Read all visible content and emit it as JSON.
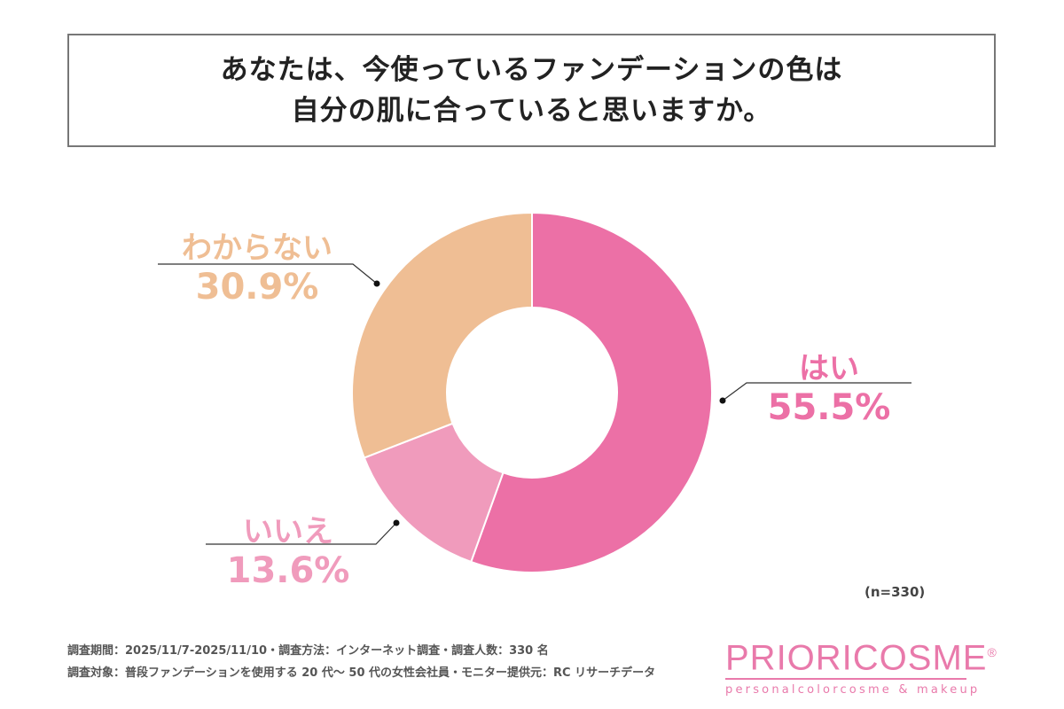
{
  "title": {
    "line1": "あなたは、今使っているファンデーションの色は",
    "line2": "自分の肌に合っていると思いますか。"
  },
  "chart_data": {
    "type": "pie",
    "variant": "donut",
    "categories": [
      "はい",
      "いいえ",
      "わからない"
    ],
    "values": [
      55.5,
      13.6,
      30.9
    ],
    "labels": [
      "55.5%",
      "13.6%",
      "30.9%"
    ],
    "colors": [
      "#EC70A6",
      "#F09BBC",
      "#EFBE94"
    ],
    "start": "top",
    "direction": "clockwise",
    "sample_size": "(n=330)"
  },
  "footer": {
    "line1": "調査期間：2025/11/7-2025/11/10・調査方法：インターネット調査・調査人数：330 名",
    "line2": "調査対象：普段ファンデーションを使用する 20 代～ 50 代の女性会社員・モニター提供元：RC リサーチデータ"
  },
  "logo": {
    "main": "PRIORICOSME",
    "mark": "®",
    "sub": "personalcolorcosme & makeup",
    "color": "#E97AAB"
  }
}
